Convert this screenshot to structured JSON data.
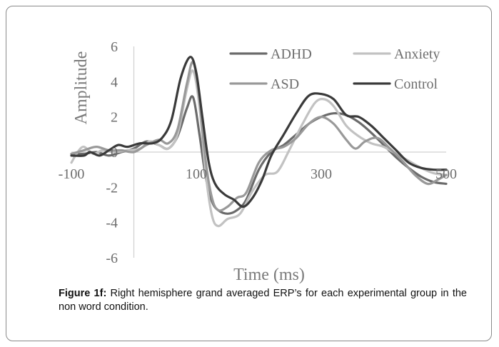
{
  "chart_data": {
    "type": "line",
    "xlabel": "Time (ms)",
    "ylabel": "Amplitude",
    "xlim": [
      -100,
      500
    ],
    "ylim": [
      -6,
      6
    ],
    "xticks": [
      -100,
      100,
      300,
      500
    ],
    "yticks": [
      6,
      4,
      2,
      0,
      -2,
      -4,
      -6
    ],
    "grid": false,
    "legend_position": "top-right",
    "series": [
      {
        "name": "ADHD",
        "color": "#6b6b6b",
        "points": [
          [
            -100,
            -0.1
          ],
          [
            -80,
            -0.1
          ],
          [
            -60,
            0.0
          ],
          [
            -40,
            -0.2
          ],
          [
            -20,
            0.0
          ],
          [
            0,
            0.2
          ],
          [
            20,
            0.6
          ],
          [
            40,
            0.4
          ],
          [
            55,
            0.2
          ],
          [
            70,
            0.9
          ],
          [
            85,
            2.5
          ],
          [
            95,
            3.1
          ],
          [
            105,
            1.0
          ],
          [
            115,
            -1.4
          ],
          [
            125,
            -2.8
          ],
          [
            135,
            -3.3
          ],
          [
            150,
            -3.5
          ],
          [
            165,
            -3.3
          ],
          [
            180,
            -2.7
          ],
          [
            200,
            -1.0
          ],
          [
            220,
            0.0
          ],
          [
            240,
            0.4
          ],
          [
            260,
            1.0
          ],
          [
            280,
            1.6
          ],
          [
            300,
            2.0
          ],
          [
            320,
            2.2
          ],
          [
            340,
            2.1
          ],
          [
            360,
            1.7
          ],
          [
            380,
            1.1
          ],
          [
            400,
            0.4
          ],
          [
            420,
            -0.3
          ],
          [
            440,
            -0.9
          ],
          [
            460,
            -1.4
          ],
          [
            480,
            -1.7
          ],
          [
            500,
            -1.8
          ]
        ]
      },
      {
        "name": "Anxiety",
        "color": "#c2c2c2",
        "points": [
          [
            -100,
            -0.6
          ],
          [
            -90,
            0.0
          ],
          [
            -80,
            0.3
          ],
          [
            -65,
            -0.1
          ],
          [
            -50,
            0.1
          ],
          [
            -30,
            0.0
          ],
          [
            -10,
            0.1
          ],
          [
            10,
            0.2
          ],
          [
            25,
            0.6
          ],
          [
            40,
            0.4
          ],
          [
            55,
            0.2
          ],
          [
            70,
            1.0
          ],
          [
            85,
            3.6
          ],
          [
            95,
            4.6
          ],
          [
            105,
            2.6
          ],
          [
            115,
            -1.2
          ],
          [
            125,
            -3.6
          ],
          [
            135,
            -4.2
          ],
          [
            150,
            -3.8
          ],
          [
            170,
            -3.5
          ],
          [
            190,
            -2.2
          ],
          [
            210,
            -1.3
          ],
          [
            230,
            -1.1
          ],
          [
            250,
            0.2
          ],
          [
            270,
            1.6
          ],
          [
            290,
            2.8
          ],
          [
            305,
            3.0
          ],
          [
            320,
            2.6
          ],
          [
            340,
            1.5
          ],
          [
            360,
            0.9
          ],
          [
            380,
            0.5
          ],
          [
            400,
            0.3
          ],
          [
            420,
            -0.1
          ],
          [
            440,
            -0.5
          ],
          [
            460,
            -0.9
          ],
          [
            480,
            -1.2
          ],
          [
            500,
            -1.3
          ]
        ]
      },
      {
        "name": "ASD",
        "color": "#999999",
        "points": [
          [
            -100,
            -0.1
          ],
          [
            -80,
            0.1
          ],
          [
            -60,
            0.3
          ],
          [
            -40,
            0.1
          ],
          [
            -20,
            0.1
          ],
          [
            0,
            0.0
          ],
          [
            20,
            0.4
          ],
          [
            40,
            0.7
          ],
          [
            55,
            0.5
          ],
          [
            70,
            1.3
          ],
          [
            85,
            3.9
          ],
          [
            95,
            5.1
          ],
          [
            105,
            3.0
          ],
          [
            115,
            -0.5
          ],
          [
            125,
            -2.6
          ],
          [
            135,
            -3.3
          ],
          [
            150,
            -3.1
          ],
          [
            165,
            -2.6
          ],
          [
            180,
            -2.3
          ],
          [
            200,
            -0.6
          ],
          [
            220,
            0.1
          ],
          [
            240,
            0.3
          ],
          [
            260,
            0.8
          ],
          [
            280,
            1.6
          ],
          [
            300,
            2.0
          ],
          [
            320,
            1.6
          ],
          [
            340,
            0.7
          ],
          [
            355,
            0.2
          ],
          [
            370,
            0.6
          ],
          [
            390,
            0.8
          ],
          [
            410,
            0.2
          ],
          [
            430,
            -0.5
          ],
          [
            450,
            -1.3
          ],
          [
            470,
            -1.8
          ],
          [
            485,
            -1.6
          ],
          [
            500,
            -1.3
          ]
        ]
      },
      {
        "name": "Control",
        "color": "#3a3a3a",
        "points": [
          [
            -100,
            -0.2
          ],
          [
            -80,
            -0.2
          ],
          [
            -70,
            0.0
          ],
          [
            -55,
            -0.2
          ],
          [
            -40,
            0.1
          ],
          [
            -25,
            0.4
          ],
          [
            -10,
            0.3
          ],
          [
            10,
            0.5
          ],
          [
            30,
            0.5
          ],
          [
            45,
            0.8
          ],
          [
            60,
            1.8
          ],
          [
            75,
            4.2
          ],
          [
            90,
            5.4
          ],
          [
            100,
            4.5
          ],
          [
            110,
            1.9
          ],
          [
            120,
            -0.6
          ],
          [
            130,
            -1.8
          ],
          [
            145,
            -2.4
          ],
          [
            160,
            -2.7
          ],
          [
            175,
            -3.1
          ],
          [
            190,
            -2.6
          ],
          [
            205,
            -1.6
          ],
          [
            220,
            -0.2
          ],
          [
            240,
            1.0
          ],
          [
            260,
            2.2
          ],
          [
            280,
            3.2
          ],
          [
            300,
            3.3
          ],
          [
            320,
            3.0
          ],
          [
            340,
            2.1
          ],
          [
            360,
            2.0
          ],
          [
            380,
            1.5
          ],
          [
            400,
            0.8
          ],
          [
            420,
            0.1
          ],
          [
            440,
            -0.6
          ],
          [
            460,
            -0.9
          ],
          [
            480,
            -1.0
          ],
          [
            500,
            -1.0
          ]
        ]
      }
    ]
  },
  "caption": {
    "label": "Figure 1f:",
    "text": " Right hemisphere grand averaged ERP’s for each experimental group in the non word condition."
  }
}
